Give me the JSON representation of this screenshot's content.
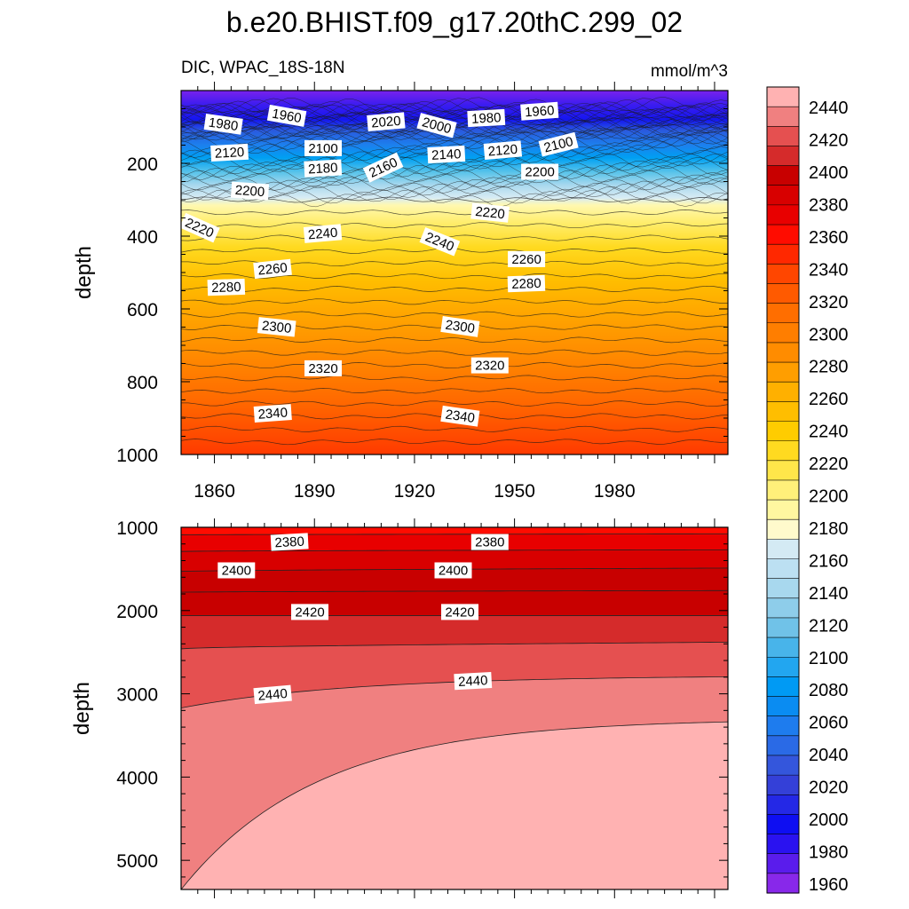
{
  "chart_data": {
    "type": "contour",
    "title": "b.e20.BHIST.f09_g17.20thC.299_02",
    "subtitle_left": "DIC, WPAC_18S-18N",
    "subtitle_right": "mmol/m^3",
    "colorbar": {
      "levels": [
        "2440",
        "2420",
        "2400",
        "2380",
        "2360",
        "2340",
        "2320",
        "2300",
        "2280",
        "2260",
        "2240",
        "2220",
        "2200",
        "2180",
        "2160",
        "2140",
        "2120",
        "2100",
        "2080",
        "2060",
        "2040",
        "2020",
        "2000",
        "1980",
        "1960"
      ],
      "colors_top_to_bottom": [
        "#FFB2B2",
        "#F08080",
        "#E55050",
        "#D52B2B",
        "#C80000",
        "#D80000",
        "#E80000",
        "#FF0C00",
        "#FF2800",
        "#FF4600",
        "#FF5A00",
        "#FF6E00",
        "#FF7E00",
        "#FF8C00",
        "#FF9E00",
        "#FFB000",
        "#FFBE00",
        "#FFCC00",
        "#FFDA20",
        "#FFE64A",
        "#FFF07A",
        "#FFF7A0",
        "#FFFACC",
        "#D4EAF4",
        "#BCE0F2",
        "#A8D8EE",
        "#8ECDEA",
        "#70C2E8",
        "#48B4EA",
        "#22A6F0",
        "#009AF4",
        "#0A8CF2",
        "#1E7CEE",
        "#2A6AE6",
        "#3456DC",
        "#3440D8",
        "#2428E6",
        "#0E0EF2",
        "#2A12F0",
        "#5A1CEC",
        "#8828EA"
      ]
    },
    "panels": [
      {
        "name": "upper",
        "ylabel": "depth",
        "yrange": [
          0,
          1000
        ],
        "yticks": [
          200,
          400,
          600,
          800,
          1000
        ],
        "xrange": [
          1850,
          2014
        ],
        "xticks": [
          1860,
          1890,
          1920,
          1950,
          1980
        ],
        "contour_labels": [
          {
            "text": "1980",
            "year": 1857,
            "depth": 95,
            "rot": 8
          },
          {
            "text": "1960",
            "year": 1876,
            "depth": 70,
            "rot": 10
          },
          {
            "text": "2020",
            "year": 1906,
            "depth": 100,
            "rot": -5
          },
          {
            "text": "2000",
            "year": 1921,
            "depth": 92,
            "rot": 15
          },
          {
            "text": "1980",
            "year": 1936,
            "depth": 88,
            "rot": -3
          },
          {
            "text": "1960",
            "year": 1952,
            "depth": 70,
            "rot": -4
          },
          {
            "text": "2120",
            "year": 1859,
            "depth": 183,
            "rot": -3
          },
          {
            "text": "2100",
            "year": 1887,
            "depth": 168,
            "rot": 0
          },
          {
            "text": "2160",
            "year": 1906,
            "depth": 242,
            "rot": -25
          },
          {
            "text": "2140",
            "year": 1924,
            "depth": 188,
            "rot": -3
          },
          {
            "text": "2120",
            "year": 1941,
            "depth": 178,
            "rot": -5
          },
          {
            "text": "2100",
            "year": 1958,
            "depth": 170,
            "rot": -14
          },
          {
            "text": "2200",
            "year": 1865,
            "depth": 282,
            "rot": 4
          },
          {
            "text": "2180",
            "year": 1887,
            "depth": 226,
            "rot": -3
          },
          {
            "text": "2200",
            "year": 1952,
            "depth": 233,
            "rot": 0
          },
          {
            "text": "2220",
            "year": 1850,
            "depth": 365,
            "rot": 24
          },
          {
            "text": "2220",
            "year": 1937,
            "depth": 340,
            "rot": 6
          },
          {
            "text": "2240",
            "year": 1887,
            "depth": 407,
            "rot": -5
          },
          {
            "text": "2240",
            "year": 1922,
            "depth": 405,
            "rot": 22
          },
          {
            "text": "2260",
            "year": 1872,
            "depth": 505,
            "rot": -6
          },
          {
            "text": "2260",
            "year": 1948,
            "depth": 473,
            "rot": 0
          },
          {
            "text": "2280",
            "year": 1858,
            "depth": 552,
            "rot": -2
          },
          {
            "text": "2280",
            "year": 1948,
            "depth": 542,
            "rot": -2
          },
          {
            "text": "2300",
            "year": 1873,
            "depth": 654,
            "rot": 6
          },
          {
            "text": "2300",
            "year": 1928,
            "depth": 651,
            "rot": 8
          },
          {
            "text": "2320",
            "year": 1887,
            "depth": 773,
            "rot": 0
          },
          {
            "text": "2320",
            "year": 1937,
            "depth": 765,
            "rot": 0
          },
          {
            "text": "2340",
            "year": 1872,
            "depth": 900,
            "rot": -4
          },
          {
            "text": "2340",
            "year": 1928,
            "depth": 897,
            "rot": 8
          }
        ]
      },
      {
        "name": "lower",
        "ylabel": "depth",
        "yrange": [
          1000,
          5350
        ],
        "yticks": [
          1000,
          2000,
          3000,
          4000,
          5000
        ],
        "xrange": [
          1850,
          2014
        ],
        "contour_labels": [
          {
            "text": "2380",
            "year": 1877,
            "depth": 1230,
            "rot": -3
          },
          {
            "text": "2380",
            "year": 1937,
            "depth": 1220,
            "rot": 0
          },
          {
            "text": "2400",
            "year": 1861,
            "depth": 1560,
            "rot": 0
          },
          {
            "text": "2400",
            "year": 1926,
            "depth": 1560,
            "rot": 0
          },
          {
            "text": "2420",
            "year": 1883,
            "depth": 2060,
            "rot": 0
          },
          {
            "text": "2420",
            "year": 1928,
            "depth": 2060,
            "rot": 0
          },
          {
            "text": "2440",
            "year": 1872,
            "depth": 3070,
            "rot": -5
          },
          {
            "text": "2440",
            "year": 1932,
            "depth": 2900,
            "rot": -3
          }
        ]
      }
    ]
  }
}
